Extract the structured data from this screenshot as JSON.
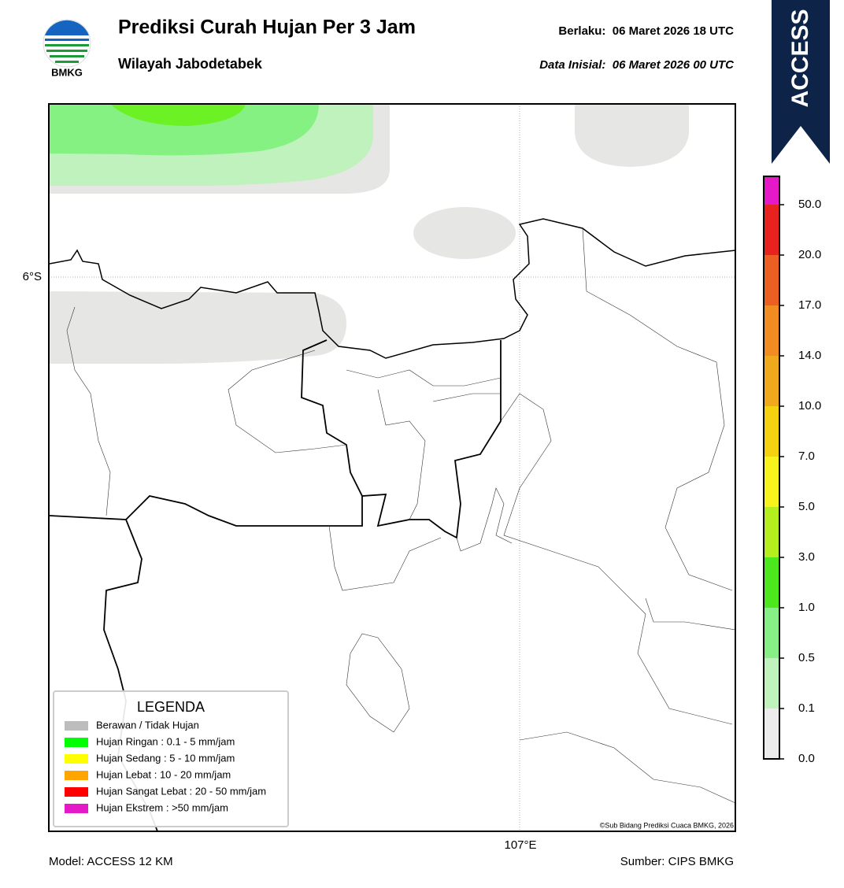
{
  "header": {
    "logo_text": "BMKG",
    "title": "Prediksi Curah Hujan Per 3 Jam",
    "subtitle": "Wilayah Jabodetabek",
    "valid": "Berlaku:  06 Maret 2026 18 UTC",
    "initial": "Data Inisial:  06 Maret 2026 00 UTC"
  },
  "banner": "ACCESS",
  "map": {
    "lat_label": "6°S",
    "lon_label": "107°E",
    "credit": "©Sub Bidang Prediksi Cuaca BMKG, 2026"
  },
  "legend": {
    "title": "LEGENDA",
    "items": [
      {
        "label": "Berawan / Tidak Hujan",
        "color": "#bdbdbd"
      },
      {
        "label": "Hujan Ringan : 0.1 - 5 mm/jam",
        "color": "#00ff00"
      },
      {
        "label": "Hujan Sedang : 5 - 10 mm/jam",
        "color": "#ffff00"
      },
      {
        "label": "Hujan Lebat : 10 - 20 mm/jam",
        "color": "#ffa500"
      },
      {
        "label": "Hujan Sangat Lebat : 20 - 50 mm/jam",
        "color": "#ff0000"
      },
      {
        "label": "Hujan Ekstrem : >50 mm/jam",
        "color": "#e619c8"
      }
    ]
  },
  "colorbar": {
    "labels": [
      "50.0",
      "20.0",
      "17.0",
      "14.0",
      "10.0",
      "7.0",
      "5.0",
      "3.0",
      "1.0",
      "0.5",
      "0.1",
      "0.0"
    ],
    "colors": [
      "#e619c8",
      "#e8221e",
      "#ec5f23",
      "#f08c22",
      "#f0a81c",
      "#f5d20f",
      "#f8f31c",
      "#b4ee1f",
      "#4ce81d",
      "#86f086",
      "#c0f2bd",
      "#ececec"
    ]
  },
  "footer": {
    "model": "Model: ACCESS 12 KM",
    "source": "Sumber: CIPS BMKG"
  }
}
